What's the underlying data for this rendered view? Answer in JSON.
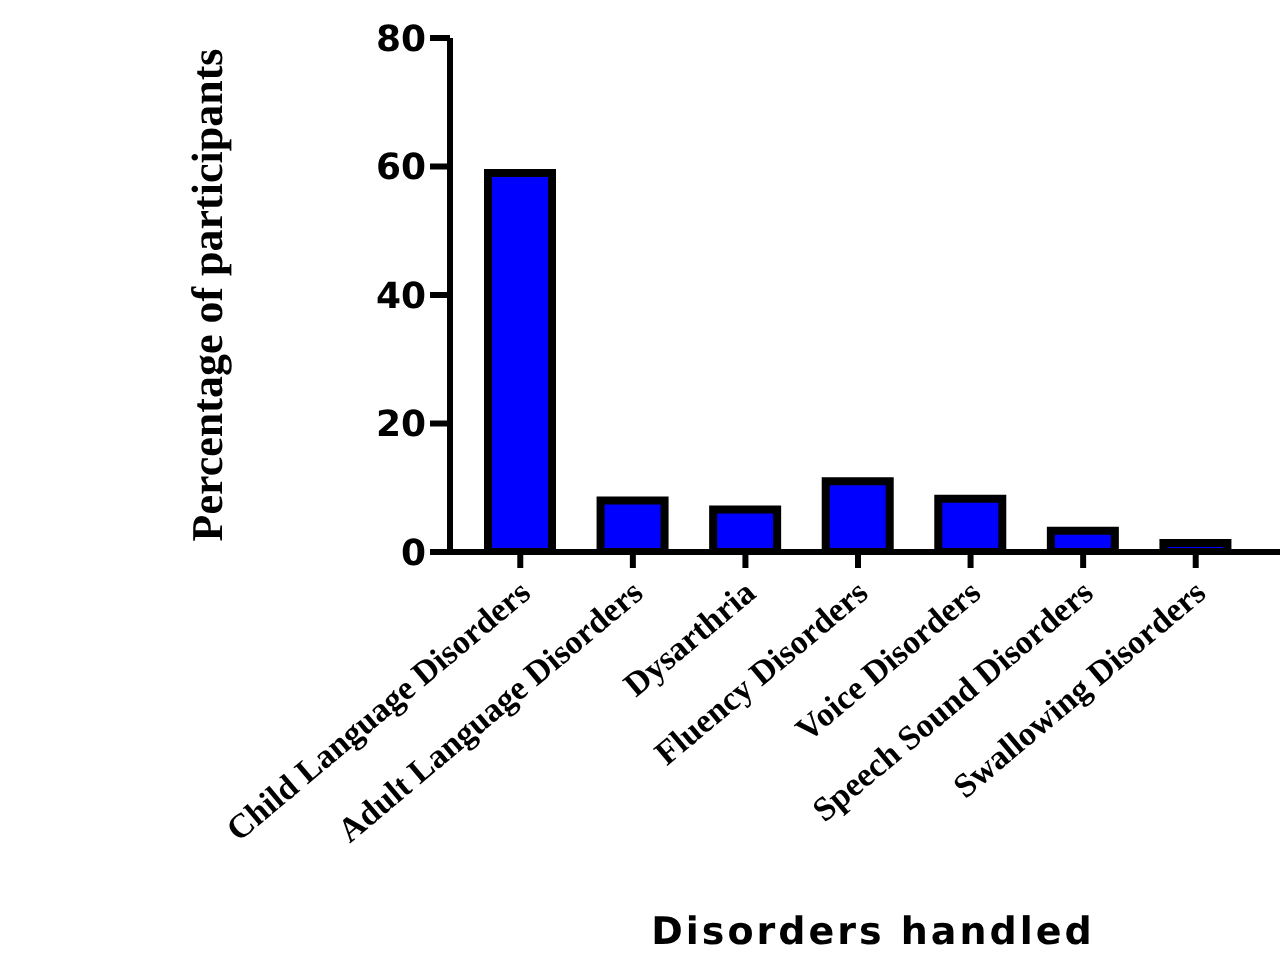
{
  "chart_data": {
    "type": "bar",
    "xlabel": "Disorders handled",
    "ylabel": "Percentage of participants",
    "categories": [
      "Child Language Disorders",
      "Adult Language Disorders",
      "Dysarthria",
      "Fluency Disorders",
      "Voice  Disorders",
      "Speech Sound Disorders",
      "Swallowing Disorders"
    ],
    "values": [
      59,
      8,
      6.6,
      11,
      8.3,
      3.3,
      1.4
    ],
    "color": "#0000ff",
    "ylim": [
      0,
      80
    ],
    "yticks": [
      0,
      20,
      40,
      60,
      80
    ],
    "grid": false,
    "legend": false
  }
}
